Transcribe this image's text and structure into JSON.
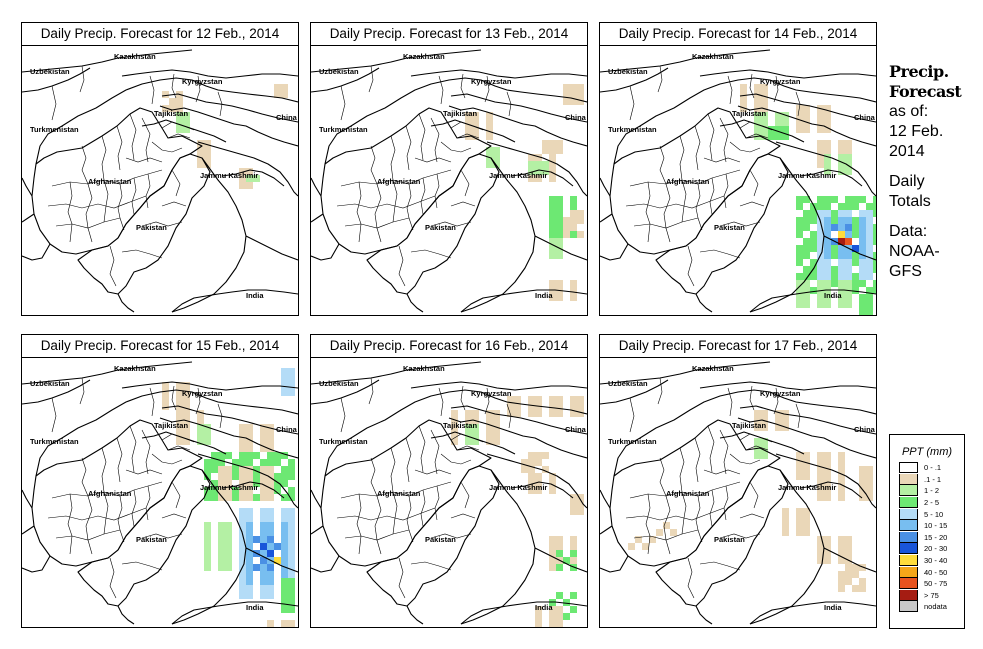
{
  "panels": [
    {
      "title": "Daily Precip. Forecast for  12 Feb., 2014"
    },
    {
      "title": "Daily Precip. Forecast for  13 Feb., 2014"
    },
    {
      "title": "Daily Precip. Forecast for  14 Feb., 2014"
    },
    {
      "title": "Daily Precip. Forecast for  15 Feb., 2014"
    },
    {
      "title": "Daily Precip. Forecast for  16 Feb., 2014"
    },
    {
      "title": "Daily Precip. Forecast for  17 Feb., 2014"
    }
  ],
  "places": [
    "Kazakhstan",
    "Uzbekistan",
    "Kyrgyzstan",
    "Tajikistan",
    "China",
    "Turkmenistan",
    "Afghanistan",
    "Jammu Kashmir",
    "Pakistan",
    "India"
  ],
  "side": {
    "line1": "Precip.",
    "line2": "Forecast",
    "line3": "as of:",
    "line4": "12 Feb.",
    "line5": "2014",
    "line6": "Daily",
    "line7": "Totals",
    "line8": "Data:",
    "line9": "NOAA-",
    "line10": "GFS"
  },
  "legend": {
    "title": "PPT (mm)",
    "items": [
      {
        "label": "0 - .1",
        "color": "#ffffff"
      },
      {
        "label": ".1 - 1",
        "color": "#ead7b8"
      },
      {
        "label": "1 - 2",
        "color": "#b4f0a4"
      },
      {
        "label": "2 - 5",
        "color": "#6de873"
      },
      {
        "label": "5 - 10",
        "color": "#b4dcf7"
      },
      {
        "label": "10 - 15",
        "color": "#78bef0"
      },
      {
        "label": "15 - 20",
        "color": "#4a90e4"
      },
      {
        "label": "20 - 30",
        "color": "#1955d9"
      },
      {
        "label": "30 - 40",
        "color": "#ffdc3c"
      },
      {
        "label": "40 - 50",
        "color": "#f5a619"
      },
      {
        "label": "50 - 75",
        "color": "#e8531e"
      },
      {
        "label": "> 75",
        "color": "#a51c12"
      },
      {
        "label": "nodata",
        "color": "#c8c8c8"
      }
    ]
  }
}
